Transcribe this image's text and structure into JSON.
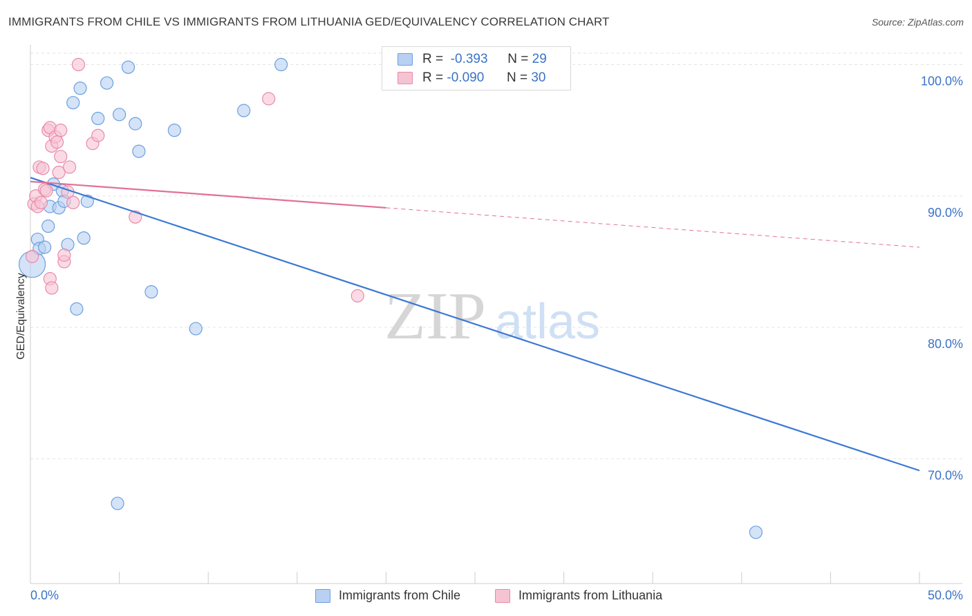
{
  "title": "IMMIGRANTS FROM CHILE VS IMMIGRANTS FROM LITHUANIA GED/EQUIVALENCY CORRELATION CHART",
  "source": "Source: ZipAtlas.com",
  "legend": {
    "rows": [
      {
        "r_label": "R =",
        "r_value": "-0.393",
        "n_label": "N =",
        "n_value": "29",
        "color": "#6a9fe0",
        "fill": "#b8d0f2"
      },
      {
        "r_label": "R =",
        "r_value": "-0.090",
        "n_label": "N =",
        "n_value": "30",
        "color": "#e88aa8",
        "fill": "#f6c3d3"
      }
    ]
  },
  "bottom_legend": [
    "Immigrants from Chile",
    "Immigrants from Lithuania"
  ],
  "watermark": {
    "zip": "ZIP",
    "atlas": "atlas"
  },
  "chart_data": {
    "type": "scatter",
    "ylabel": "GED/Equivalency",
    "xlim": [
      0,
      50
    ],
    "ylim": [
      60.5,
      101.5
    ],
    "x_tick_labels": {
      "left": "0.0%",
      "right": "50.0%"
    },
    "y_ticks": [
      {
        "value": 100,
        "label": "100.0%"
      },
      {
        "value": 90,
        "label": "90.0%"
      },
      {
        "value": 80,
        "label": "80.0%"
      },
      {
        "value": 70,
        "label": "70.0%"
      }
    ],
    "series": [
      {
        "name": "Immigrants from Chile",
        "color": "#3a78d4",
        "point_fill": "#b8d0f2",
        "point_stroke": "#6a9fe0",
        "trend": {
          "x0": 0,
          "y0": 91.4,
          "x1": 50,
          "y1": 69.1,
          "solid_to": 50
        },
        "points": [
          {
            "x": 0.1,
            "y": 84.8,
            "big": true
          },
          {
            "x": 0.4,
            "y": 86.7
          },
          {
            "x": 0.5,
            "y": 86.0
          },
          {
            "x": 0.8,
            "y": 86.1
          },
          {
            "x": 1.0,
            "y": 87.7
          },
          {
            "x": 1.1,
            "y": 89.2
          },
          {
            "x": 1.3,
            "y": 90.9
          },
          {
            "x": 1.6,
            "y": 89.1
          },
          {
            "x": 1.8,
            "y": 90.4
          },
          {
            "x": 1.9,
            "y": 89.6
          },
          {
            "x": 2.1,
            "y": 86.3
          },
          {
            "x": 2.4,
            "y": 97.1
          },
          {
            "x": 2.6,
            "y": 81.4
          },
          {
            "x": 2.8,
            "y": 98.2
          },
          {
            "x": 3.0,
            "y": 86.8
          },
          {
            "x": 3.2,
            "y": 89.6
          },
          {
            "x": 3.8,
            "y": 95.9
          },
          {
            "x": 4.3,
            "y": 98.6
          },
          {
            "x": 4.9,
            "y": 66.6
          },
          {
            "x": 5.0,
            "y": 96.2
          },
          {
            "x": 5.5,
            "y": 99.8
          },
          {
            "x": 5.9,
            "y": 95.5
          },
          {
            "x": 6.1,
            "y": 93.4
          },
          {
            "x": 6.8,
            "y": 82.7
          },
          {
            "x": 8.1,
            "y": 95.0
          },
          {
            "x": 9.3,
            "y": 79.9
          },
          {
            "x": 12.0,
            "y": 96.5
          },
          {
            "x": 14.1,
            "y": 100.0
          },
          {
            "x": 40.8,
            "y": 64.4
          }
        ]
      },
      {
        "name": "Immigrants from Lithuania",
        "color": "#e27097",
        "point_fill": "#f6c3d3",
        "point_stroke": "#e88aa8",
        "trend": {
          "x0": 0,
          "y0": 91.1,
          "x1": 50,
          "y1": 86.1,
          "solid_to": 20
        },
        "points": [
          {
            "x": 0.1,
            "y": 85.4
          },
          {
            "x": 0.2,
            "y": 89.4
          },
          {
            "x": 0.3,
            "y": 90.0
          },
          {
            "x": 0.4,
            "y": 89.2
          },
          {
            "x": 0.5,
            "y": 92.2
          },
          {
            "x": 0.6,
            "y": 89.5
          },
          {
            "x": 0.7,
            "y": 92.1
          },
          {
            "x": 0.8,
            "y": 90.5
          },
          {
            "x": 0.9,
            "y": 90.4
          },
          {
            "x": 1.0,
            "y": 95.0
          },
          {
            "x": 1.1,
            "y": 95.2
          },
          {
            "x": 1.1,
            "y": 83.7
          },
          {
            "x": 1.2,
            "y": 83.0
          },
          {
            "x": 1.2,
            "y": 93.8
          },
          {
            "x": 1.4,
            "y": 94.5
          },
          {
            "x": 1.5,
            "y": 94.1
          },
          {
            "x": 1.6,
            "y": 91.8
          },
          {
            "x": 1.7,
            "y": 93.0
          },
          {
            "x": 1.7,
            "y": 95.0
          },
          {
            "x": 1.9,
            "y": 85.0
          },
          {
            "x": 1.9,
            "y": 85.5
          },
          {
            "x": 2.1,
            "y": 90.3
          },
          {
            "x": 2.2,
            "y": 92.2
          },
          {
            "x": 2.4,
            "y": 89.5
          },
          {
            "x": 2.7,
            "y": 100.0
          },
          {
            "x": 3.5,
            "y": 94.0
          },
          {
            "x": 3.8,
            "y": 94.6
          },
          {
            "x": 5.9,
            "y": 88.4
          },
          {
            "x": 13.4,
            "y": 97.4
          },
          {
            "x": 18.4,
            "y": 82.4
          }
        ]
      }
    ]
  }
}
